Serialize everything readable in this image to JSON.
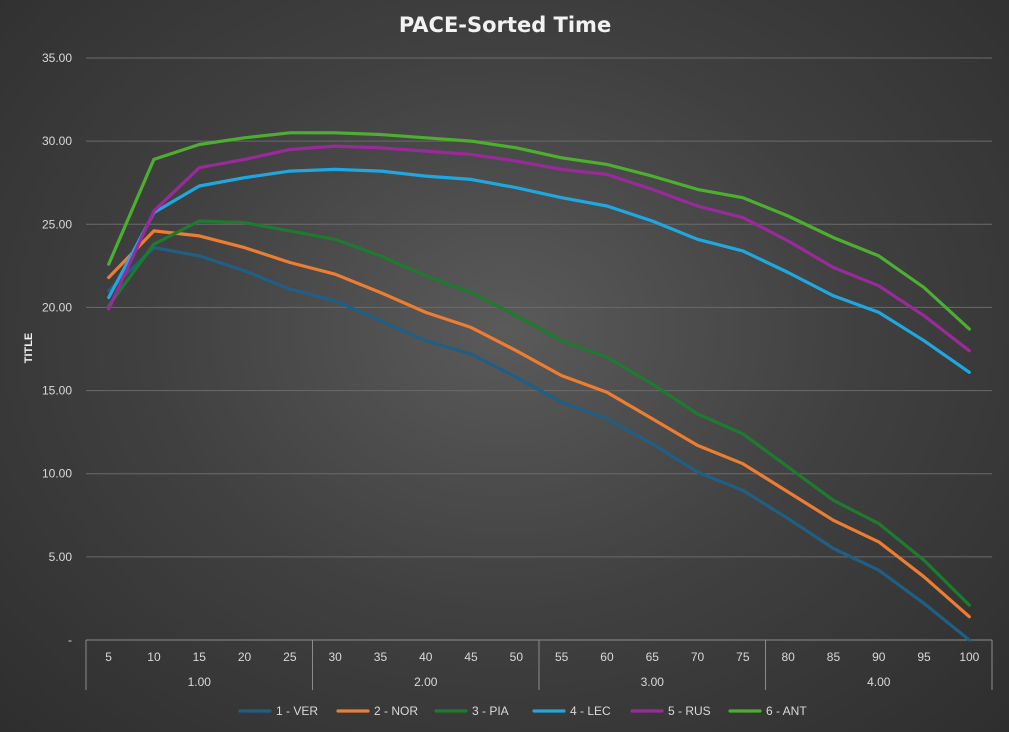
{
  "chart_data": {
    "type": "line",
    "title": "PACE-Sorted Time",
    "ylabel": "TITLE",
    "xlabel": "",
    "ylim": [
      0,
      35
    ],
    "y_ticks": [
      "-",
      "5.00",
      "10.00",
      "15.00",
      "20.00",
      "25.00",
      "30.00",
      "35.00"
    ],
    "x": [
      "5",
      "10",
      "15",
      "20",
      "25",
      "30",
      "35",
      "40",
      "45",
      "50",
      "55",
      "60",
      "65",
      "70",
      "75",
      "80",
      "85",
      "90",
      "95",
      "100"
    ],
    "x_groups": [
      {
        "label": "1.00",
        "start": 0,
        "end": 4
      },
      {
        "label": "2.00",
        "start": 5,
        "end": 9
      },
      {
        "label": "3.00",
        "start": 10,
        "end": 14
      },
      {
        "label": "4.00",
        "start": 15,
        "end": 19
      }
    ],
    "grid": true,
    "legend": "bottom",
    "series": [
      {
        "name": "1 - VER",
        "color": "#1f5f85",
        "values": [
          21.0,
          23.6,
          23.1,
          22.2,
          21.1,
          20.4,
          19.2,
          18.0,
          17.2,
          15.8,
          14.3,
          13.3,
          11.8,
          10.1,
          9.0,
          7.3,
          5.5,
          4.2,
          2.2,
          0.0
        ]
      },
      {
        "name": "2 - NOR",
        "color": "#ed7d31",
        "values": [
          21.8,
          24.6,
          24.3,
          23.6,
          22.7,
          22.0,
          20.9,
          19.7,
          18.8,
          17.4,
          15.9,
          14.9,
          13.3,
          11.7,
          10.6,
          8.9,
          7.2,
          5.9,
          3.8,
          1.4
        ]
      },
      {
        "name": "3 - PIA",
        "color": "#1e7a2e",
        "values": [
          20.1,
          23.8,
          25.2,
          25.1,
          24.6,
          24.1,
          23.1,
          21.9,
          20.9,
          19.5,
          18.0,
          17.0,
          15.4,
          13.6,
          12.4,
          10.4,
          8.4,
          7.0,
          4.8,
          2.1
        ]
      },
      {
        "name": "4 - LEC",
        "color": "#1fa8e0",
        "values": [
          20.6,
          25.7,
          27.3,
          27.8,
          28.2,
          28.3,
          28.2,
          27.9,
          27.7,
          27.2,
          26.6,
          26.1,
          25.2,
          24.1,
          23.4,
          22.1,
          20.7,
          19.7,
          18.0,
          16.1
        ]
      },
      {
        "name": "5 - RUS",
        "color": "#9a2a9a",
        "values": [
          19.9,
          25.8,
          28.4,
          28.9,
          29.5,
          29.7,
          29.6,
          29.4,
          29.2,
          28.8,
          28.3,
          28.0,
          27.1,
          26.1,
          25.4,
          24.0,
          22.4,
          21.3,
          19.5,
          17.4
        ]
      },
      {
        "name": "6 - ANT",
        "color": "#4caf2f",
        "values": [
          22.6,
          28.9,
          29.8,
          30.2,
          30.5,
          30.5,
          30.4,
          30.2,
          30.0,
          29.6,
          29.0,
          28.6,
          27.9,
          27.1,
          26.6,
          25.5,
          24.2,
          23.1,
          21.2,
          18.7
        ]
      }
    ]
  }
}
